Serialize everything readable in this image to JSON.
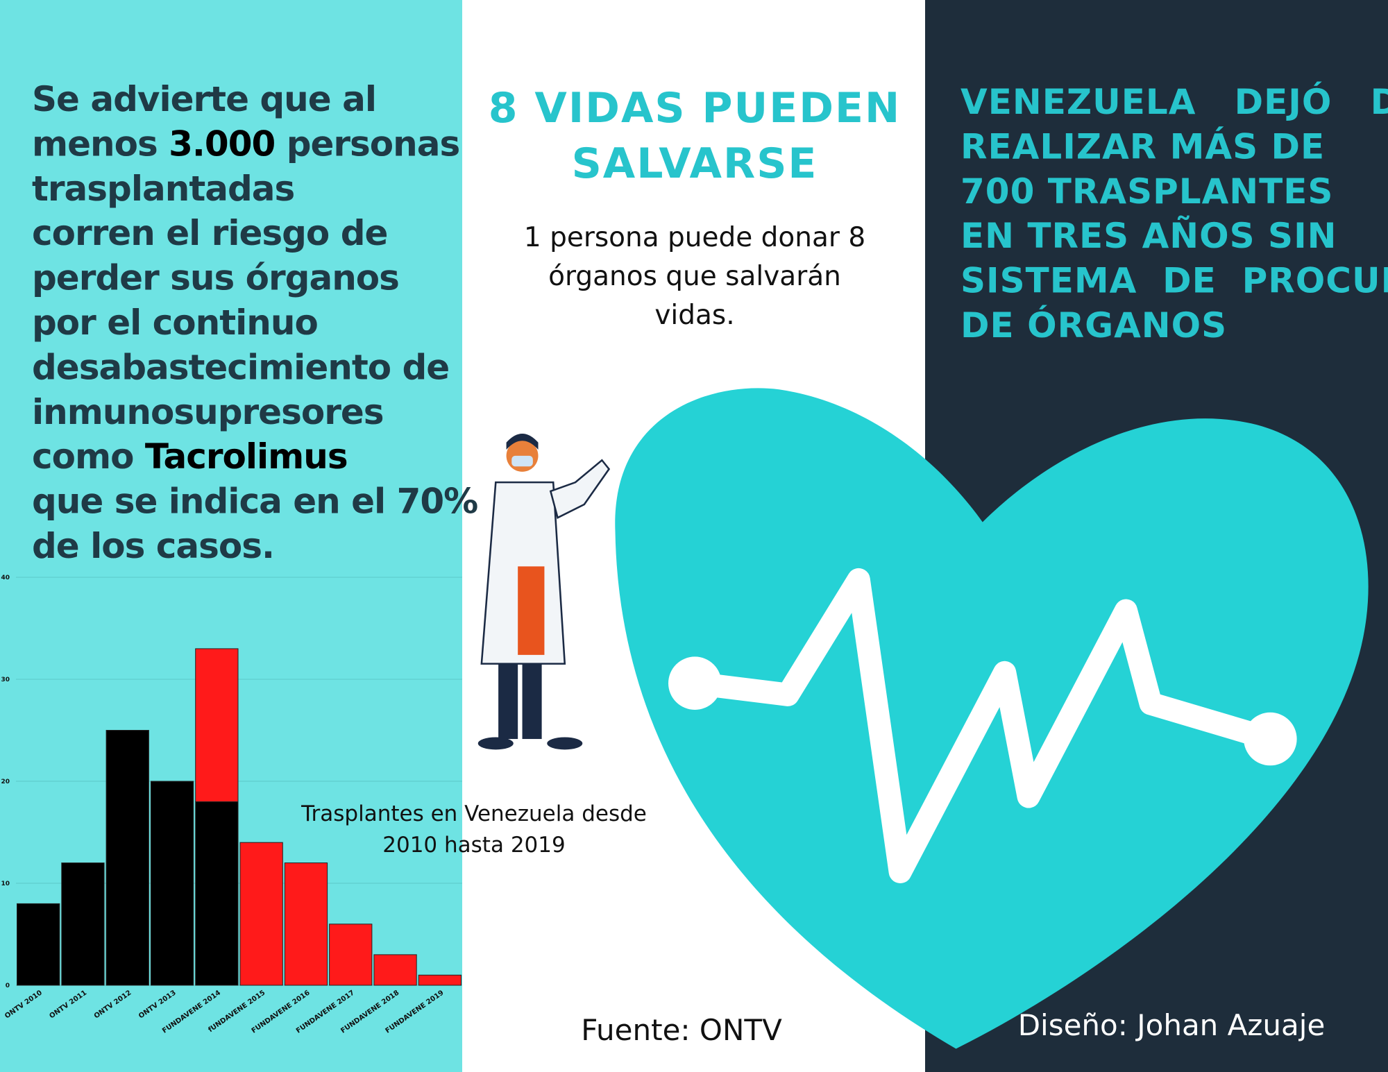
{
  "left_text": {
    "lines": [
      [
        {
          "text": "Se advierte que al"
        }
      ],
      [
        {
          "text": "menos "
        },
        {
          "text": "3.000",
          "highlight": true
        },
        {
          "text": " personas"
        }
      ],
      [
        {
          "text": "trasplantadas"
        }
      ],
      [
        {
          "text": "corren el riesgo de"
        }
      ],
      [
        {
          "text": "perder sus órganos"
        }
      ],
      [
        {
          "text": "por el continuo"
        }
      ],
      [
        {
          "text": "desabastecimiento de"
        }
      ],
      [
        {
          "text": "inmunosupresores"
        }
      ],
      [
        {
          "text": "como "
        },
        {
          "text": "Tacrolimus",
          "highlight": true
        }
      ],
      [
        {
          "text": "que se indica en el 70%"
        }
      ],
      [
        {
          "text": "de los casos."
        }
      ]
    ]
  },
  "center": {
    "title_lines": [
      "8 VIDAS PUEDEN",
      "SALVARSE"
    ],
    "body_lines": [
      "1 persona puede donar 8",
      "órganos que salvarán",
      "vidas."
    ]
  },
  "right": {
    "title_lines": [
      "VENEZUELA   DEJÓ   DE",
      "REALIZAR MÁS DE",
      "700 TRASPLANTES",
      "EN TRES AÑOS SIN",
      "SISTEMA  DE  PROCURA",
      "DE ÓRGANOS"
    ]
  },
  "chart_data": {
    "type": "bar",
    "stacked": true,
    "title_lines": [
      "Trasplantes en Venezuela desde",
      "2010 hasta 2019"
    ],
    "categories": [
      "ONTV 2010",
      "ONTV 2011",
      "ONTV 2012",
      "ONTV 2013",
      "FUNDAVENE 2014",
      "fUNDAVENE 2015",
      "FUNDAVENE 2016",
      "FUNDAVENE 2017",
      "FUNDAVENE 2018",
      "FUNDAVENE 2019"
    ],
    "series": [
      {
        "color": "#000000",
        "values": [
          8,
          12,
          25,
          20,
          18,
          null,
          null,
          null,
          null,
          null
        ]
      },
      {
        "color": "#ff1a1a",
        "values": [
          null,
          null,
          null,
          null,
          15,
          14,
          12,
          6,
          3,
          1
        ]
      }
    ],
    "ylim": [
      0,
      40
    ],
    "yticks": [
      0,
      10,
      20,
      30,
      40
    ],
    "grid": true
  },
  "footer": {
    "source": "Fuente: ONTV",
    "design": "Diseño: Johan Azuaje"
  }
}
